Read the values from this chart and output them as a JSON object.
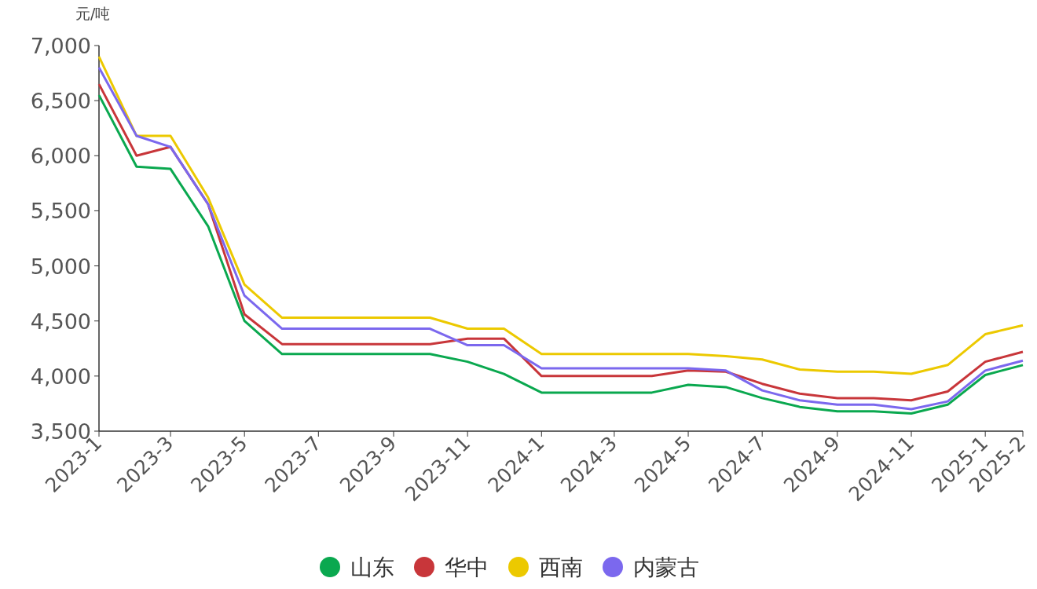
{
  "chart_data": {
    "type": "line",
    "ylabel": "元/吨",
    "x": [
      "2023-01",
      "2023-02",
      "2023-03",
      "2023-04",
      "2023-05",
      "2023-06",
      "2023-07",
      "2023-08",
      "2023-09",
      "2023-10",
      "2023-11",
      "2023-12",
      "2024-01",
      "2024-02",
      "2024-03",
      "2024-04",
      "2024-05",
      "2024-06",
      "2024-07",
      "2024-08",
      "2024-09",
      "2024-10",
      "2024-11",
      "2024-12",
      "2025-01",
      "2025-02"
    ],
    "series": [
      {
        "name": "山东",
        "color": "#0aa84f",
        "values": [
          6550,
          5900,
          5880,
          5360,
          4500,
          4200,
          4200,
          4200,
          4200,
          4200,
          4130,
          4020,
          3850,
          3850,
          3850,
          3850,
          3920,
          3900,
          3800,
          3720,
          3680,
          3680,
          3660,
          3740,
          4010,
          4100
        ]
      },
      {
        "name": "华中",
        "color": "#c8363a",
        "values": [
          6650,
          6000,
          6080,
          5560,
          4560,
          4290,
          4290,
          4290,
          4290,
          4290,
          4340,
          4340,
          4000,
          4000,
          4000,
          4000,
          4050,
          4040,
          3930,
          3840,
          3800,
          3800,
          3780,
          3860,
          4130,
          4220
        ]
      },
      {
        "name": "西南",
        "color": "#ecc900",
        "values": [
          6900,
          6180,
          6180,
          5620,
          4830,
          4530,
          4530,
          4530,
          4530,
          4530,
          4430,
          4430,
          4200,
          4200,
          4200,
          4200,
          4200,
          4180,
          4150,
          4060,
          4040,
          4040,
          4020,
          4100,
          4380,
          4460
        ]
      },
      {
        "name": "内蒙古",
        "color": "#7b68ee",
        "values": [
          6800,
          6180,
          6080,
          5560,
          4730,
          4430,
          4430,
          4430,
          4430,
          4430,
          4280,
          4280,
          4070,
          4070,
          4070,
          4070,
          4070,
          4050,
          3870,
          3780,
          3740,
          3740,
          3700,
          3770,
          4050,
          4140
        ]
      }
    ],
    "xlim": [
      "2023-01",
      "2025-02"
    ],
    "xticks": [
      {
        "value": "2023-01",
        "label": "2023-1"
      },
      {
        "value": "2023-03",
        "label": "2023-3"
      },
      {
        "value": "2023-05",
        "label": "2023-5"
      },
      {
        "value": "2023-07",
        "label": "2023-7"
      },
      {
        "value": "2023-09",
        "label": "2023-9"
      },
      {
        "value": "2023-11",
        "label": "2023-11"
      },
      {
        "value": "2024-01",
        "label": "2024-1"
      },
      {
        "value": "2024-03",
        "label": "2024-3"
      },
      {
        "value": "2024-05",
        "label": "2024-5"
      },
      {
        "value": "2024-07",
        "label": "2024-7"
      },
      {
        "value": "2024-09",
        "label": "2024-9"
      },
      {
        "value": "2024-11",
        "label": "2024-11"
      },
      {
        "value": "2025-01",
        "label": "2025-1"
      },
      {
        "value": "2025-02",
        "label": "2025-2"
      }
    ],
    "ylim": [
      3500,
      7000
    ],
    "yticks": [
      {
        "value": 3500,
        "label": "3,500"
      },
      {
        "value": 4000,
        "label": "4,000"
      },
      {
        "value": 4500,
        "label": "4,500"
      },
      {
        "value": 5000,
        "label": "5,000"
      },
      {
        "value": 5500,
        "label": "5,500"
      },
      {
        "value": 6000,
        "label": "6,000"
      },
      {
        "value": 6500,
        "label": "6,500"
      },
      {
        "value": 7000,
        "label": "7,000"
      }
    ],
    "grid": false,
    "legend": "bottom",
    "marker": "none",
    "line_style": "solid"
  }
}
